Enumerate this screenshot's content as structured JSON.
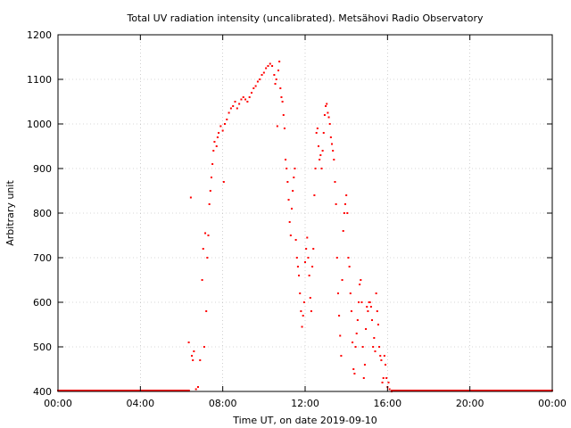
{
  "chart_data": {
    "type": "scatter",
    "title": "Total UV radiation intensity (uncalibrated). Metsähovi Radio Observatory",
    "xlabel": "Time UT, on date 2019-09-10",
    "ylabel": "Arbitrary unit",
    "xlim_hours": [
      0,
      24
    ],
    "ylim": [
      400,
      1200
    ],
    "grid": true,
    "x_ticks": [
      {
        "hour": 0,
        "label": "00:00"
      },
      {
        "hour": 4,
        "label": "04:00"
      },
      {
        "hour": 8,
        "label": "08:00"
      },
      {
        "hour": 12,
        "label": "12:00"
      },
      {
        "hour": 16,
        "label": "16:00"
      },
      {
        "hour": 20,
        "label": "20:00"
      },
      {
        "hour": 24,
        "label": "00:00"
      }
    ],
    "y_ticks": [
      400,
      500,
      600,
      700,
      800,
      900,
      1000,
      1100,
      1200
    ],
    "marker_color": "#ff0000",
    "series": [
      {
        "points": [
          [
            6.35,
            510
          ],
          [
            6.45,
            835
          ],
          [
            6.5,
            480
          ],
          [
            6.55,
            470
          ],
          [
            6.6,
            490
          ],
          [
            6.7,
            405
          ],
          [
            6.8,
            410
          ],
          [
            6.9,
            470
          ],
          [
            7.0,
            650
          ],
          [
            7.05,
            720
          ],
          [
            7.1,
            500
          ],
          [
            7.15,
            755
          ],
          [
            7.2,
            580
          ],
          [
            7.25,
            700
          ],
          [
            7.3,
            750
          ],
          [
            7.35,
            820
          ],
          [
            7.4,
            850
          ],
          [
            7.45,
            880
          ],
          [
            7.5,
            910
          ],
          [
            7.55,
            940
          ],
          [
            7.6,
            960
          ],
          [
            7.7,
            950
          ],
          [
            7.75,
            970
          ],
          [
            7.8,
            980
          ],
          [
            7.9,
            995
          ],
          [
            8.0,
            985
          ],
          [
            8.05,
            870
          ],
          [
            8.1,
            1000
          ],
          [
            8.2,
            1010
          ],
          [
            8.3,
            1025
          ],
          [
            8.4,
            1035
          ],
          [
            8.5,
            1040
          ],
          [
            8.6,
            1050
          ],
          [
            8.7,
            1035
          ],
          [
            8.8,
            1045
          ],
          [
            8.9,
            1055
          ],
          [
            9.0,
            1060
          ],
          [
            9.1,
            1055
          ],
          [
            9.2,
            1050
          ],
          [
            9.3,
            1060
          ],
          [
            9.4,
            1070
          ],
          [
            9.5,
            1080
          ],
          [
            9.6,
            1085
          ],
          [
            9.7,
            1095
          ],
          [
            9.8,
            1100
          ],
          [
            9.9,
            1110
          ],
          [
            10.0,
            1115
          ],
          [
            10.1,
            1125
          ],
          [
            10.2,
            1130
          ],
          [
            10.3,
            1135
          ],
          [
            10.4,
            1130
          ],
          [
            10.5,
            1110
          ],
          [
            10.55,
            1090
          ],
          [
            10.6,
            1100
          ],
          [
            10.65,
            995
          ],
          [
            10.7,
            1120
          ],
          [
            10.75,
            1140
          ],
          [
            10.8,
            1080
          ],
          [
            10.85,
            1060
          ],
          [
            10.9,
            1050
          ],
          [
            10.95,
            1020
          ],
          [
            11.0,
            990
          ],
          [
            11.05,
            920
          ],
          [
            11.1,
            900
          ],
          [
            11.15,
            870
          ],
          [
            11.2,
            830
          ],
          [
            11.25,
            780
          ],
          [
            11.3,
            750
          ],
          [
            11.35,
            810
          ],
          [
            11.4,
            850
          ],
          [
            11.45,
            880
          ],
          [
            11.5,
            900
          ],
          [
            11.55,
            740
          ],
          [
            11.6,
            700
          ],
          [
            11.65,
            680
          ],
          [
            11.7,
            660
          ],
          [
            11.75,
            620
          ],
          [
            11.8,
            580
          ],
          [
            11.85,
            545
          ],
          [
            11.9,
            570
          ],
          [
            11.95,
            600
          ],
          [
            12.0,
            690
          ],
          [
            12.05,
            720
          ],
          [
            12.1,
            745
          ],
          [
            12.15,
            700
          ],
          [
            12.2,
            660
          ],
          [
            12.25,
            610
          ],
          [
            12.3,
            580
          ],
          [
            12.35,
            680
          ],
          [
            12.4,
            720
          ],
          [
            12.45,
            840
          ],
          [
            12.5,
            900
          ],
          [
            12.55,
            980
          ],
          [
            12.6,
            990
          ],
          [
            12.65,
            950
          ],
          [
            12.7,
            920
          ],
          [
            12.75,
            930
          ],
          [
            12.8,
            900
          ],
          [
            12.85,
            940
          ],
          [
            12.9,
            980
          ],
          [
            12.95,
            1020
          ],
          [
            13.0,
            1040
          ],
          [
            13.05,
            1045
          ],
          [
            13.1,
            1025
          ],
          [
            13.15,
            1015
          ],
          [
            13.2,
            1000
          ],
          [
            13.25,
            970
          ],
          [
            13.3,
            955
          ],
          [
            13.35,
            940
          ],
          [
            13.4,
            920
          ],
          [
            13.45,
            870
          ],
          [
            13.5,
            820
          ],
          [
            13.55,
            700
          ],
          [
            13.6,
            620
          ],
          [
            13.65,
            570
          ],
          [
            13.7,
            525
          ],
          [
            13.75,
            480
          ],
          [
            13.8,
            650
          ],
          [
            13.85,
            760
          ],
          [
            13.9,
            800
          ],
          [
            13.95,
            820
          ],
          [
            14.0,
            840
          ],
          [
            14.05,
            800
          ],
          [
            14.1,
            700
          ],
          [
            14.15,
            680
          ],
          [
            14.2,
            620
          ],
          [
            14.25,
            580
          ],
          [
            14.3,
            510
          ],
          [
            14.35,
            450
          ],
          [
            14.4,
            440
          ],
          [
            14.45,
            500
          ],
          [
            14.5,
            530
          ],
          [
            14.55,
            560
          ],
          [
            14.6,
            600
          ],
          [
            14.65,
            640
          ],
          [
            14.7,
            650
          ],
          [
            14.75,
            600
          ],
          [
            14.8,
            500
          ],
          [
            14.85,
            430
          ],
          [
            14.9,
            460
          ],
          [
            14.95,
            540
          ],
          [
            15.0,
            590
          ],
          [
            15.05,
            580
          ],
          [
            15.1,
            600
          ],
          [
            15.15,
            600
          ],
          [
            15.2,
            590
          ],
          [
            15.25,
            560
          ],
          [
            15.3,
            500
          ],
          [
            15.35,
            520
          ],
          [
            15.4,
            490
          ],
          [
            15.45,
            620
          ],
          [
            15.5,
            580
          ],
          [
            15.55,
            550
          ],
          [
            15.6,
            500
          ],
          [
            15.65,
            480
          ],
          [
            15.7,
            470
          ],
          [
            15.75,
            420
          ],
          [
            15.8,
            430
          ],
          [
            15.85,
            480
          ],
          [
            15.9,
            460
          ],
          [
            15.95,
            430
          ],
          [
            16.0,
            410
          ],
          [
            16.05,
            420
          ],
          [
            16.1,
            405
          ],
          [
            16.2,
            400
          ]
        ]
      }
    ]
  }
}
